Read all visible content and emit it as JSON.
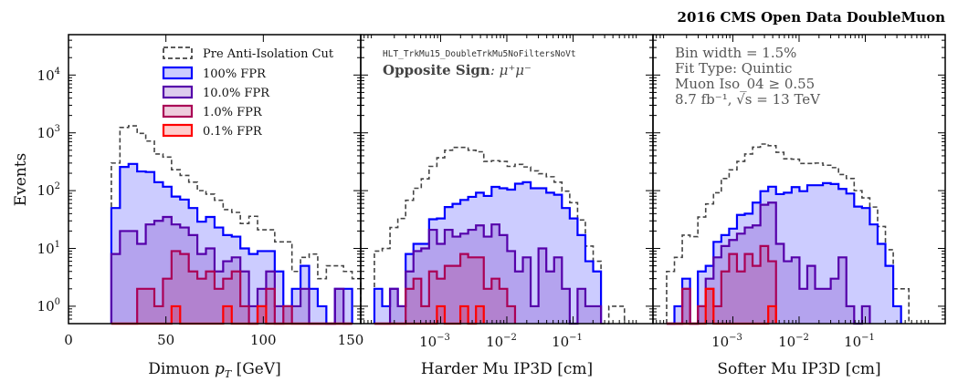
{
  "title": "2016 CMS Open Data DoubleMuon",
  "ylabel": "Events",
  "yticks": [
    {
      "base": "10",
      "exp": "0"
    },
    {
      "base": "10",
      "exp": "1"
    },
    {
      "base": "10",
      "exp": "2"
    },
    {
      "base": "10",
      "exp": "3"
    },
    {
      "base": "10",
      "exp": "4"
    }
  ],
  "legend": [
    {
      "label": "Pre Anti-Isolation Cut",
      "color": "#333333",
      "style": "dashed"
    },
    {
      "label": "100% FPR",
      "color": "#0000ff"
    },
    {
      "label": "10.0% FPR",
      "color": "#5500aa"
    },
    {
      "label": "1.0% FPR",
      "color": "#aa0055"
    },
    {
      "label": "0.1% FPR",
      "color": "#ff0000"
    }
  ],
  "panel2_text": {
    "trigger": "HLT_TrkMu15_DoubleTrkMu5NoFiltersNoVt",
    "sign_bold": "Opposite Sign",
    "sign_rest": ": μ⁺μ⁻"
  },
  "panel3_text": [
    "Bin width = 1.5%",
    "Fit Type: Quintic",
    "Muon Iso_04 ≥ 0.55",
    "8.7 fb⁻¹, √s = 13 TeV"
  ],
  "chart_data": [
    {
      "type": "histogram-step",
      "y_scale": "log",
      "ylim": [
        0.5,
        50000
      ],
      "xlim": [
        0,
        150
      ],
      "x_scale": "linear",
      "xlabel_parts": {
        "pre": "Dimuon ",
        "var": "p",
        "sub": "T",
        "post": " [GeV]"
      },
      "xticks": [
        "0",
        "50",
        "100",
        "150"
      ],
      "xtick_values": [
        0,
        50,
        100,
        150
      ],
      "bins": {
        "start": 22,
        "width": 4.414
      },
      "series": [
        {
          "name": "Pre Anti-Isolation Cut",
          "values": [
            300,
            1240,
            1320,
            980,
            720,
            430,
            380,
            230,
            183,
            140,
            100,
            87,
            68,
            47,
            42,
            27,
            36,
            21,
            21,
            13,
            13,
            4,
            7,
            8,
            3,
            5,
            5,
            4,
            3
          ]
        },
        {
          "name": "100% FPR",
          "values": [
            50,
            257,
            290,
            215,
            210,
            140,
            117,
            79,
            70,
            50,
            29,
            35,
            23,
            17,
            16,
            10,
            8,
            9,
            9,
            4,
            1,
            2,
            5,
            2,
            1,
            0,
            2,
            2
          ]
        },
        {
          "name": "10.0% FPR",
          "values": [
            8,
            20,
            20,
            12,
            26,
            30,
            35,
            26,
            23,
            17,
            8,
            10,
            4,
            6,
            7,
            4,
            1,
            2,
            4,
            1,
            1,
            1,
            2,
            0,
            0,
            0,
            2,
            0
          ]
        },
        {
          "name": "1.0% FPR",
          "values": [
            0,
            0,
            0,
            2,
            2,
            1,
            3,
            9,
            8,
            4,
            3,
            4,
            2,
            3,
            4,
            1,
            0,
            1,
            2,
            0,
            1,
            0,
            0,
            0,
            0,
            0,
            0,
            0
          ]
        },
        {
          "name": "0.1% FPR",
          "values": [
            0,
            0,
            0,
            0,
            0,
            0,
            0,
            1,
            0,
            0,
            0,
            0,
            0,
            1,
            0,
            0,
            0,
            1,
            0,
            0,
            0,
            0,
            0,
            0,
            0,
            0,
            0,
            0
          ]
        }
      ]
    },
    {
      "type": "histogram-step",
      "y_scale": "log",
      "ylim": [
        0.5,
        50000
      ],
      "x_scale": "log",
      "xlim": [
        6.22e-05,
        1.61
      ],
      "xlabel": "Harder Mu IP3D [cm]",
      "xticks": [
        {
          "base": "10",
          "exp": "−3"
        },
        {
          "base": "10",
          "exp": "−2"
        },
        {
          "base": "10",
          "exp": "−1"
        }
      ],
      "xtick_values": [
        0.001,
        0.01,
        0.1
      ],
      "bins": {
        "start": 0.0001,
        "log10_width": 0.118
      },
      "series": [
        {
          "name": "Pre Anti-Isolation Cut",
          "values": [
            9,
            10,
            23,
            33,
            68,
            110,
            160,
            263,
            370,
            500,
            560,
            560,
            500,
            470,
            320,
            330,
            320,
            263,
            285,
            257,
            220,
            196,
            174,
            140,
            98,
            62,
            31,
            11,
            6,
            0,
            1,
            1
          ]
        },
        {
          "name": "100% FPR",
          "values": [
            2,
            1,
            2,
            1,
            8,
            12,
            12,
            32,
            33,
            52,
            59,
            69,
            78,
            92,
            81,
            116,
            110,
            104,
            132,
            140,
            110,
            110,
            92,
            85,
            50,
            33,
            17,
            6,
            4
          ]
        },
        {
          "name": "10.0% FPR",
          "values": [
            0,
            0,
            2,
            1,
            4,
            9,
            10,
            21,
            12,
            21,
            16,
            18,
            21,
            25,
            16,
            26,
            17,
            9,
            4,
            7,
            1,
            10,
            4,
            7,
            2,
            0,
            2,
            1,
            1
          ]
        },
        {
          "name": "1.0% FPR",
          "values": [
            0,
            0,
            0,
            0,
            2,
            3,
            1,
            4,
            3,
            5,
            5,
            8,
            7,
            7,
            2,
            3,
            2,
            1
          ]
        },
        {
          "name": "0.1% FPR",
          "values": [
            0,
            0,
            0,
            0,
            0,
            0,
            0,
            0,
            1,
            0,
            0,
            1,
            0,
            1
          ]
        }
      ]
    },
    {
      "type": "histogram-step",
      "y_scale": "log",
      "ylim": [
        0.5,
        50000
      ],
      "x_scale": "log",
      "xlim": [
        6.22e-05,
        1.61
      ],
      "xlabel": "Softer Mu IP3D [cm]",
      "xticks": [
        {
          "base": "10",
          "exp": "−3"
        },
        {
          "base": "10",
          "exp": "−2"
        },
        {
          "base": "10",
          "exp": "−1"
        }
      ],
      "xtick_values": [
        0.001,
        0.01,
        0.1
      ],
      "bins": {
        "start": 0.0001,
        "log10_width": 0.118
      },
      "series": [
        {
          "name": "Pre Anti-Isolation Cut",
          "values": [
            4,
            7,
            17,
            16,
            35,
            59,
            92,
            162,
            229,
            320,
            430,
            565,
            640,
            600,
            460,
            355,
            350,
            295,
            295,
            300,
            275,
            250,
            190,
            162,
            100,
            75,
            52,
            24,
            9.5,
            2,
            2
          ]
        },
        {
          "name": "100% FPR",
          "values": [
            0,
            1,
            3,
            0,
            4,
            5,
            13,
            17,
            22,
            38,
            40,
            62,
            98,
            117,
            87,
            92,
            115,
            98,
            124,
            124,
            135,
            130,
            107,
            89,
            53,
            50,
            26,
            12,
            5,
            1
          ]
        },
        {
          "name": "10.0% FPR",
          "values": [
            0,
            0,
            2,
            0,
            1,
            3,
            7,
            11,
            14,
            18,
            23,
            25,
            57,
            62,
            12,
            6,
            7,
            2,
            5,
            2,
            2,
            3,
            7,
            1,
            0,
            1
          ]
        },
        {
          "name": "1.0% FPR",
          "values": [
            0,
            0,
            2,
            0,
            1,
            2,
            1,
            4,
            8,
            4,
            8,
            5,
            11,
            6
          ]
        },
        {
          "name": "0.1% FPR",
          "values": [
            0,
            0,
            0,
            0,
            0,
            2,
            0,
            0,
            0,
            0,
            0,
            0,
            0,
            1
          ]
        }
      ]
    }
  ]
}
